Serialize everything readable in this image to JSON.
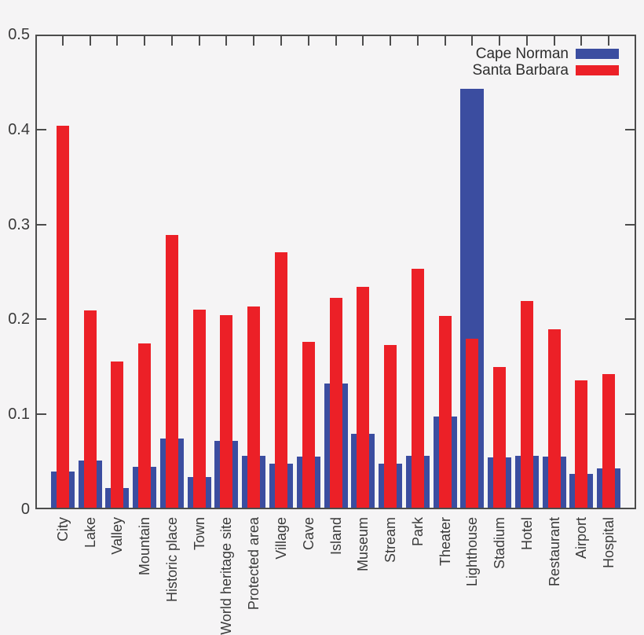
{
  "chart_data": {
    "type": "bar",
    "title": "",
    "xlabel": "",
    "ylabel": "",
    "categories": [
      "City",
      "Lake",
      "Valley",
      "Mountain",
      "Historic place",
      "Town",
      "World heritage site",
      "Protected area",
      "Village",
      "Cave",
      "Island",
      "Museum",
      "Stream",
      "Park",
      "Theater",
      "Lighthouse",
      "Stadium",
      "Hotel",
      "Restaurant",
      "Airport",
      "Hospital"
    ],
    "series": [
      {
        "name": "Cape Norman",
        "color": "#3b4da0",
        "values": [
          0.038,
          0.05,
          0.021,
          0.043,
          0.073,
          0.032,
          0.07,
          0.055,
          0.046,
          0.054,
          0.131,
          0.078,
          0.046,
          0.055,
          0.096,
          0.441,
          0.053,
          0.055,
          0.054,
          0.036,
          0.041
        ]
      },
      {
        "name": "Santa Barbara",
        "color": "#ec2027",
        "values": [
          0.402,
          0.208,
          0.154,
          0.173,
          0.287,
          0.209,
          0.203,
          0.212,
          0.269,
          0.175,
          0.221,
          0.233,
          0.171,
          0.252,
          0.202,
          0.178,
          0.148,
          0.218,
          0.188,
          0.134,
          0.141
        ]
      }
    ],
    "ylim": [
      0,
      0.5
    ],
    "yticks": [
      0,
      0.1,
      0.2,
      0.3,
      0.4,
      0.5
    ],
    "ytick_labels": [
      "0",
      "0.1",
      "0.2",
      "0.3",
      "0.4",
      "0.5"
    ],
    "grid": false,
    "legend_position": "top-right",
    "style": {
      "background": "#f5f4f5",
      "border_color": "#4c4c4c",
      "tick_length": 12,
      "blue_bar_width": 30,
      "red_bar_width": 16
    }
  }
}
